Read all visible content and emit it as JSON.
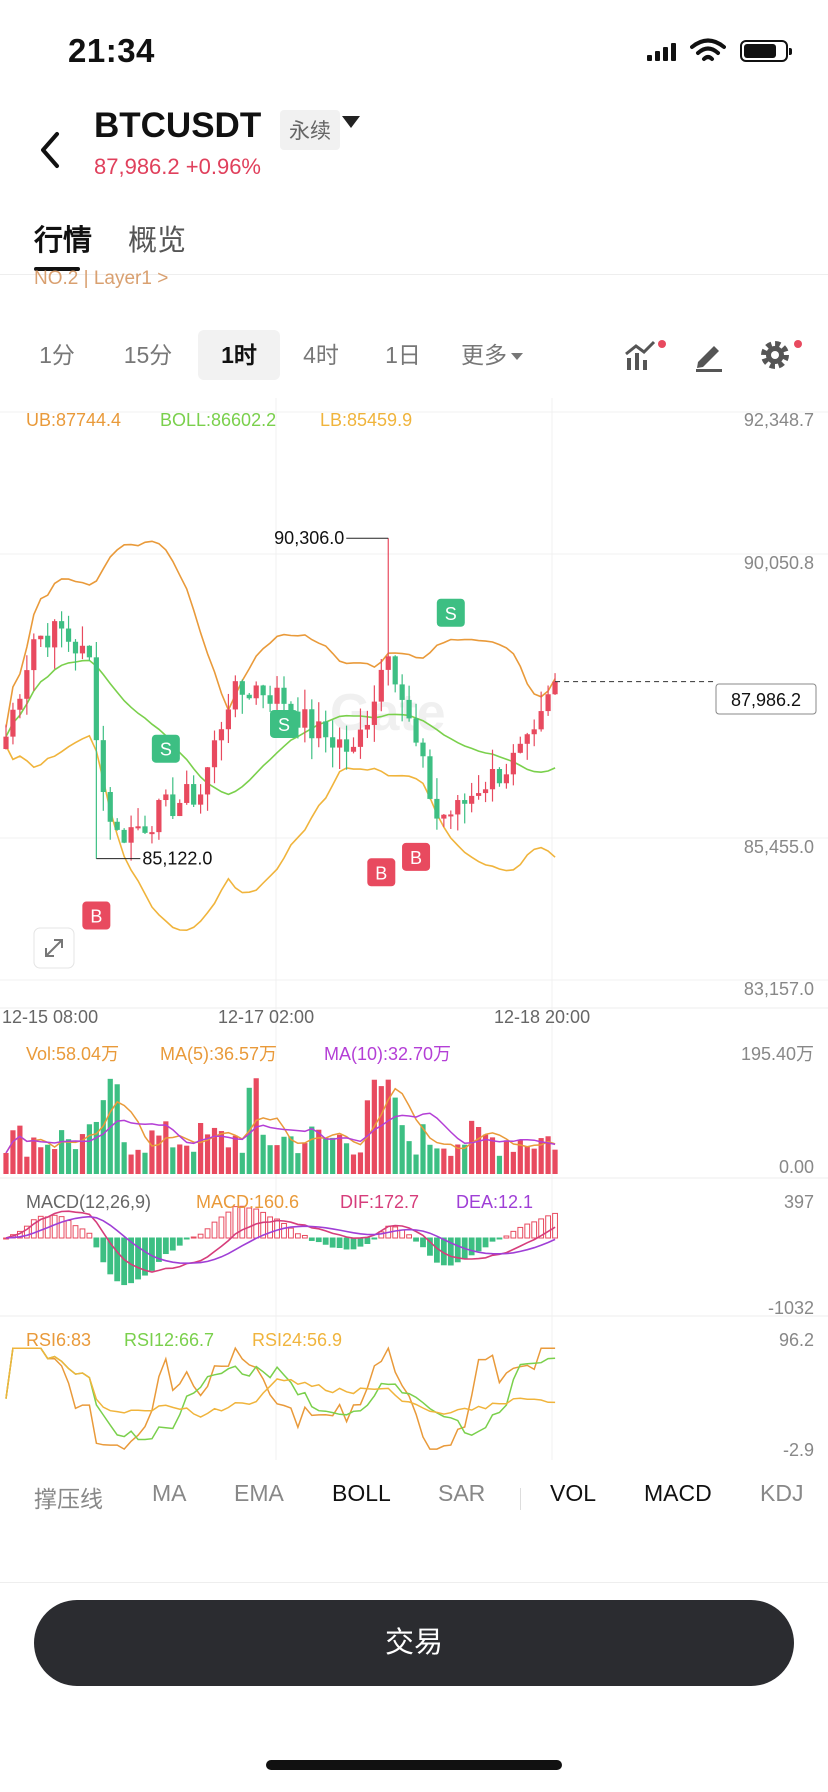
{
  "status_bar": {
    "time": "21:34"
  },
  "header": {
    "symbol": "BTCUSDT",
    "contract_tag": "永续",
    "price": "87,986.2",
    "change": "+0.96%"
  },
  "tabs": [
    {
      "label": "行情"
    },
    {
      "label": "概览"
    }
  ],
  "partial_row": "NO.2 | Layer1 >",
  "timeframes": [
    {
      "label": "1分"
    },
    {
      "label": "15分"
    },
    {
      "label": "1时",
      "active": true
    },
    {
      "label": "4时"
    },
    {
      "label": "1日"
    },
    {
      "label": "更多"
    }
  ],
  "icons": {
    "indicator": "chart-indicator-icon",
    "draw": "pen-icon",
    "settings": "gear-icon",
    "expand": "expand-icon"
  },
  "chart_data": {
    "type": "candlestick",
    "ohlc_shape": "hourly BTCUSDT candles from 12-15 08:00 to 12-18 21:00 (values estimated)",
    "main": {
      "legend": {
        "ub": "UB:87744.4",
        "boll": "BOLL:86602.2",
        "lb": "LB:85459.9"
      },
      "y_labels": [
        "92,348.7",
        "90,050.8",
        "85,455.0",
        "83,157.0"
      ],
      "ylim": [
        83157.0,
        92348.7
      ],
      "x_labels": [
        "12-15 08:00",
        "12-17 02:00",
        "12-18 20:00"
      ],
      "last_price": "87,986.2",
      "last_value": 87986.2,
      "high_label": "90,306.0",
      "high_value": 90306.0,
      "low_label": "85,122.0",
      "low_value": 85122.0,
      "signals": [
        {
          "type": "S",
          "index": 23,
          "price": 86900
        },
        {
          "type": "S",
          "index": 40,
          "price": 87300
        },
        {
          "type": "S",
          "index": 64,
          "price": 89100
        },
        {
          "type": "B",
          "index": 13,
          "price": 84200
        },
        {
          "type": "B",
          "index": 54,
          "price": 84900
        },
        {
          "type": "B",
          "index": 59,
          "price": 85150
        }
      ]
    },
    "volume": {
      "legend": {
        "vol": "Vol:58.04万",
        "ma5": "MA(5):36.57万",
        "ma10": "MA(10):32.70万"
      },
      "y_labels": [
        "195.40万",
        "0.00"
      ]
    },
    "macd": {
      "legend": {
        "title": "MACD(12,26,9)",
        "macd": "MACD:160.6",
        "dif": "DIF:172.7",
        "dea": "DEA:12.1"
      },
      "y_labels": [
        "397",
        "-1032"
      ]
    },
    "rsi": {
      "legend": {
        "rsi6": "RSI6:83",
        "rsi12": "RSI12:66.7",
        "rsi24": "RSI24:56.9"
      },
      "y_labels": [
        "96.2",
        "-2.9"
      ]
    },
    "colors": {
      "up": "#e84a5f",
      "down": "#3dbf83",
      "ub": "#e99a3a",
      "boll": "#7ad04c",
      "lb": "#f0b43c",
      "ma10": "#b43fd6",
      "dif": "#d63d7b",
      "dea": "#9f3fd6"
    }
  },
  "indicators": [
    {
      "label": "撑压线",
      "on": false
    },
    {
      "label": "MA",
      "on": false
    },
    {
      "label": "EMA",
      "on": false
    },
    {
      "label": "BOLL",
      "on": true
    },
    {
      "label": "SAR",
      "on": false
    },
    {
      "label": "VOL",
      "on": true
    },
    {
      "label": "MACD",
      "on": true
    },
    {
      "label": "KDJ",
      "on": false
    }
  ],
  "trade_button": "交易"
}
